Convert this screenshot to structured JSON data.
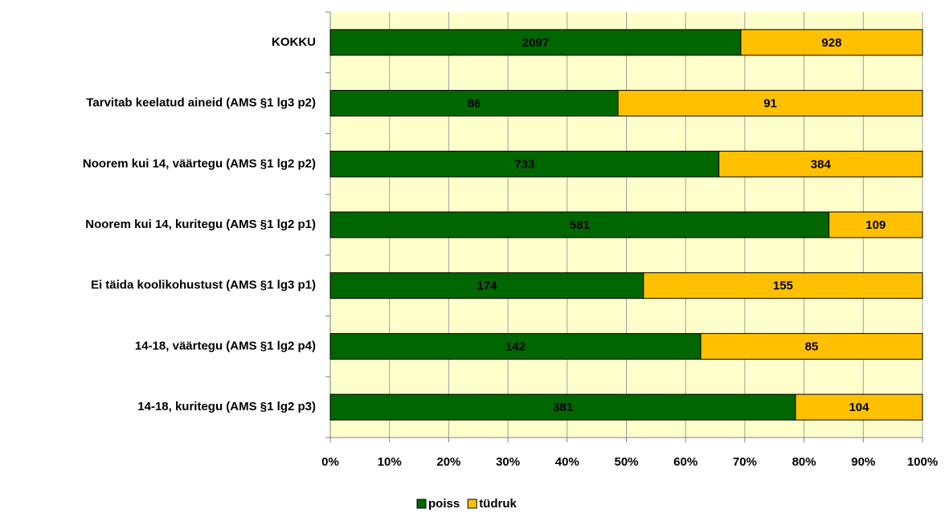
{
  "chart_data": {
    "type": "bar",
    "orientation": "horizontal",
    "stacking": "percent",
    "categories": [
      "KOKKU",
      "Tarvitab keelatud aineid (AMS §1 lg3 p2)",
      "Noorem kui 14, väärtegu (AMS §1 lg2 p2)",
      "Noorem kui 14, kuritegu (AMS §1 lg2 p1)",
      "Ei täida koolikohustust (AMS §1 lg3 p1)",
      "14-18, väärtegu  (AMS §1 lg2 p4)",
      "14-18, kuritegu  (AMS §1 lg2 p3)"
    ],
    "series": [
      {
        "name": "poiss",
        "color": "#006600",
        "values": [
          2097,
          86,
          733,
          581,
          174,
          142,
          381
        ]
      },
      {
        "name": "tüdruk",
        "color": "#ffc000",
        "values": [
          928,
          91,
          384,
          109,
          155,
          85,
          104
        ]
      }
    ],
    "xlim": [
      0,
      100
    ],
    "xticks": [
      {
        "value": 0,
        "label": "0%"
      },
      {
        "value": 10,
        "label": "10%"
      },
      {
        "value": 20,
        "label": "20%"
      },
      {
        "value": 30,
        "label": "30%"
      },
      {
        "value": 40,
        "label": "40%"
      },
      {
        "value": 50,
        "label": "50%"
      },
      {
        "value": 60,
        "label": "60%"
      },
      {
        "value": 70,
        "label": "70%"
      },
      {
        "value": 80,
        "label": "80%"
      },
      {
        "value": 90,
        "label": "90%"
      },
      {
        "value": 100,
        "label": "100%"
      }
    ],
    "grid": true,
    "legend": "bottom",
    "plot_background": "#ffffcc"
  }
}
